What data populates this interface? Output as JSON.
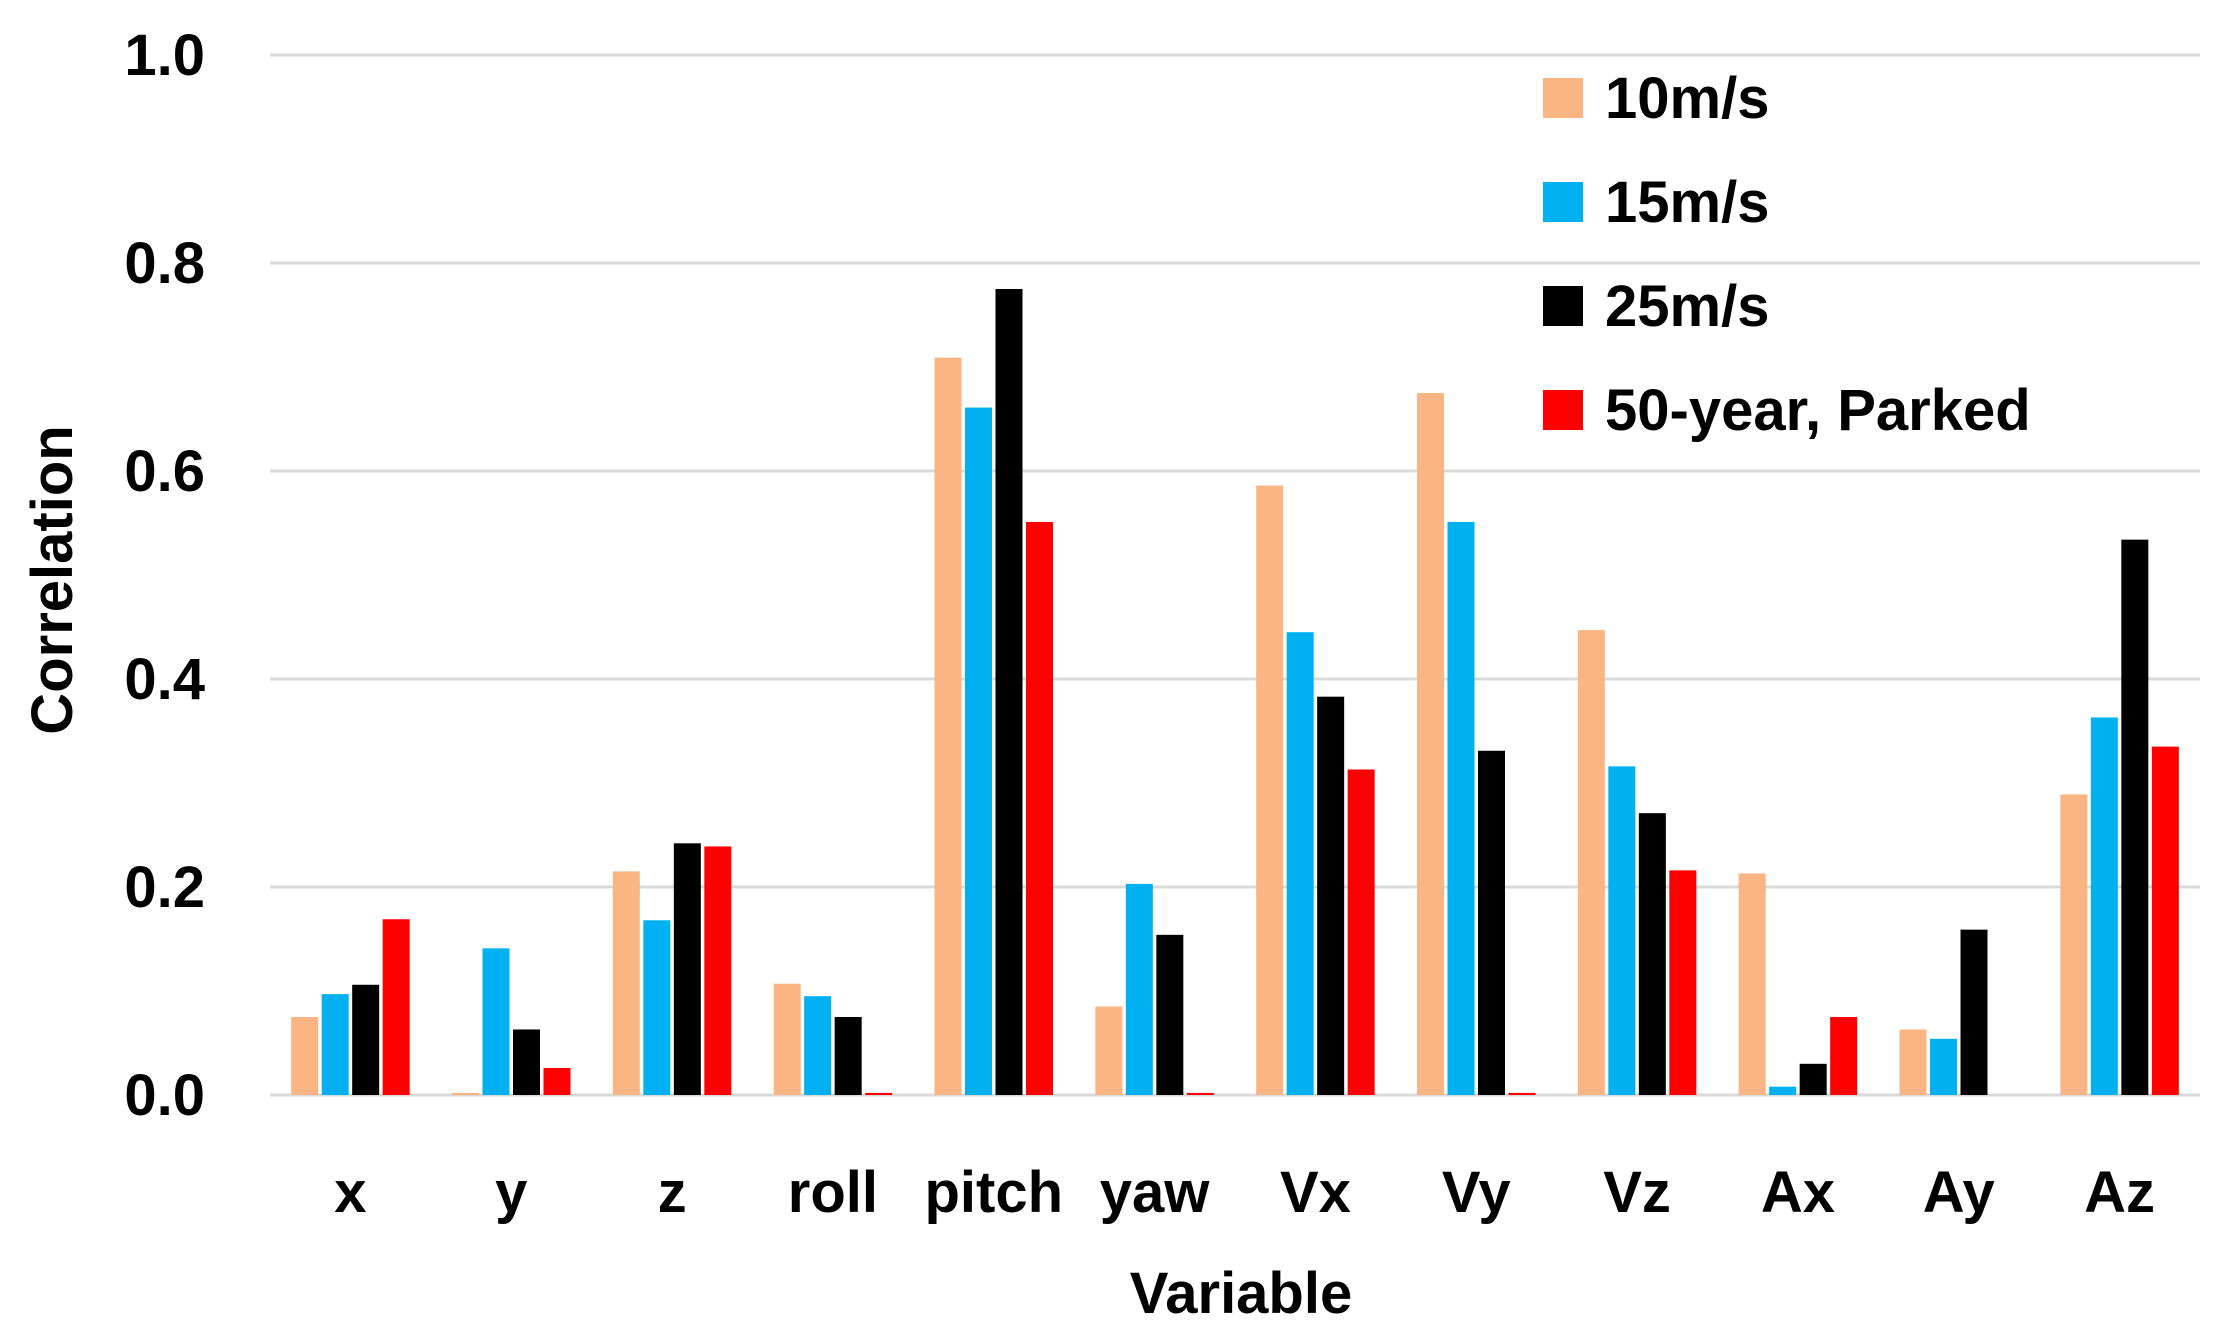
{
  "chart_data": {
    "type": "bar",
    "title": "",
    "xlabel": "Variable",
    "ylabel": "Correlation",
    "ylim": [
      0,
      1.0
    ],
    "yticks": [
      0.0,
      0.2,
      0.4,
      0.6,
      0.8,
      1.0
    ],
    "ytick_labels": [
      "0.0",
      "0.2",
      "0.4",
      "0.6",
      "0.8",
      "1.0"
    ],
    "grid": true,
    "legend_position": "top-right",
    "categories": [
      "x",
      "y",
      "z",
      "roll",
      "pitch",
      "yaw",
      "Vx",
      "Vy",
      "Vz",
      "Ax",
      "Ay",
      "Az"
    ],
    "series": [
      {
        "name": "10m/s",
        "color": "#FBB484",
        "values": [
          0.075,
          0.002,
          0.215,
          0.107,
          0.709,
          0.085,
          0.586,
          0.675,
          0.447,
          0.213,
          0.063,
          0.289
        ]
      },
      {
        "name": "15m/s",
        "color": "#00B0F0",
        "values": [
          0.097,
          0.141,
          0.168,
          0.095,
          0.661,
          0.203,
          0.445,
          0.551,
          0.316,
          0.008,
          0.054,
          0.363
        ]
      },
      {
        "name": "25m/s",
        "color": "#000000",
        "values": [
          0.106,
          0.063,
          0.242,
          0.075,
          0.775,
          0.154,
          0.383,
          0.331,
          0.271,
          0.03,
          0.159,
          0.534
        ]
      },
      {
        "name": "50-year, Parked",
        "color": "#FF0000",
        "values": [
          0.169,
          0.026,
          0.239,
          0.002,
          0.551,
          0.002,
          0.313,
          0.002,
          0.216,
          0.075,
          0.0,
          0.335
        ]
      }
    ]
  }
}
